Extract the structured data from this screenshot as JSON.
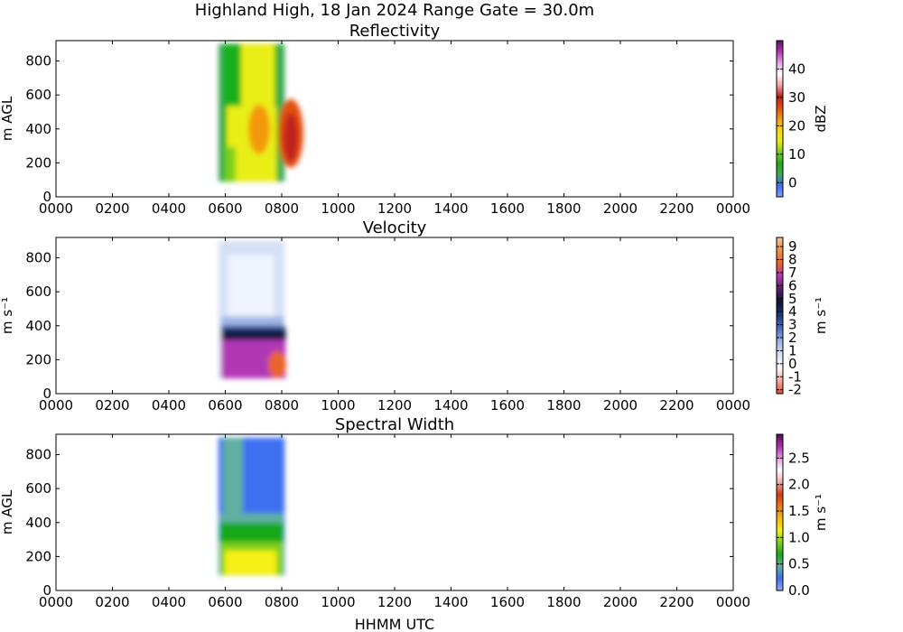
{
  "figure_title": "Highland High, 18 Jan 2024 Range Gate = 30.0m",
  "xlabel": "HHMM UTC",
  "chart_data": [
    {
      "type": "heatmap",
      "title": "Reflectivity",
      "ylabel": "m AGL",
      "xlim": [
        0,
        2400
      ],
      "ylim": [
        0,
        920
      ],
      "x_tick_labels": [
        "0000",
        "0200",
        "0400",
        "0600",
        "0800",
        "1000",
        "1200",
        "1400",
        "1600",
        "1800",
        "2000",
        "2200",
        "0000"
      ],
      "y_tick_labels": [
        "0",
        "200",
        "400",
        "600",
        "800"
      ],
      "colorbar": {
        "label": "dBZ",
        "vmin": -5,
        "vmax": 50,
        "ticks": [
          0,
          10,
          20,
          30,
          40
        ],
        "tick_labels": [
          "0",
          "10",
          "20",
          "30",
          "40"
        ],
        "colors": [
          "#7fa0ff",
          "#3a6ef0",
          "#3fa85a",
          "#19b01a",
          "#7ccf1e",
          "#e9ee12",
          "#f7d70c",
          "#f39810",
          "#e24f10",
          "#c2201a",
          "#f5a0a0",
          "#ffffff",
          "#e5a2e2",
          "#b833b3",
          "#5a1158"
        ]
      },
      "data_extent_x": [
        560,
        820
      ],
      "data_extent_y": [
        90,
        900
      ],
      "dominant_colors": [
        "#19b01a",
        "#e9ee12",
        "#e24f10"
      ]
    },
    {
      "type": "heatmap",
      "title": "Velocity",
      "ylabel": "m s⁻¹",
      "xlim": [
        0,
        2400
      ],
      "ylim": [
        0,
        920
      ],
      "x_tick_labels": [
        "0000",
        "0200",
        "0400",
        "0600",
        "0800",
        "1000",
        "1200",
        "1400",
        "1600",
        "1800",
        "2000",
        "2200",
        "0000"
      ],
      "y_tick_labels": [
        "0",
        "200",
        "400",
        "600",
        "800"
      ],
      "colorbar": {
        "label": "m s⁻¹",
        "vmin": -2.3,
        "vmax": 9.7,
        "ticks": [
          -2,
          -1,
          0,
          1,
          2,
          3,
          4,
          5,
          6,
          7,
          8,
          9
        ],
        "tick_labels": [
          "-2",
          "-1",
          "0",
          "1",
          "2",
          "3",
          "4",
          "5",
          "6",
          "7",
          "8",
          "9"
        ],
        "colors": [
          "#e8503c",
          "#f5a8a0",
          "#ffffff",
          "#d6e0f5",
          "#9db4e6",
          "#4a70c8",
          "#1c3a7a",
          "#0d1633",
          "#5c1a6b",
          "#b137b5",
          "#e9632a",
          "#f0904a",
          "#f7c29a"
        ]
      },
      "data_extent_x": [
        560,
        820
      ],
      "data_extent_y": [
        90,
        900
      ],
      "dominant_colors": [
        "#d6e0f5",
        "#1c3a7a",
        "#b137b5"
      ]
    },
    {
      "type": "heatmap",
      "title": "Spectral Width",
      "ylabel": "m AGL",
      "xlim": [
        0,
        2400
      ],
      "ylim": [
        0,
        920
      ],
      "x_tick_labels": [
        "0000",
        "0200",
        "0400",
        "0600",
        "0800",
        "1000",
        "1200",
        "1400",
        "1600",
        "1800",
        "2000",
        "2200",
        "0000"
      ],
      "y_tick_labels": [
        "0",
        "200",
        "400",
        "600",
        "800"
      ],
      "colorbar": {
        "label": "m s⁻¹",
        "vmin": 0,
        "vmax": 2.95,
        "ticks": [
          0,
          0.5,
          1,
          1.5,
          2,
          2.5
        ],
        "tick_labels": [
          "0.0",
          "0.5",
          "1.0",
          "1.5",
          "2.0",
          "2.5"
        ],
        "colors": [
          "#8fa8ff",
          "#3f6ff2",
          "#5fb0a0",
          "#18a818",
          "#7fd01e",
          "#f5f012",
          "#f5b80c",
          "#ef7a10",
          "#d43a10",
          "#f2a8a8",
          "#ffffff",
          "#e0a0e0",
          "#b02db0",
          "#4a0f50"
        ]
      },
      "data_extent_x": [
        560,
        820
      ],
      "data_extent_y": [
        90,
        900
      ],
      "dominant_colors": [
        "#3f6ff2",
        "#18a818",
        "#f5f012"
      ]
    }
  ]
}
